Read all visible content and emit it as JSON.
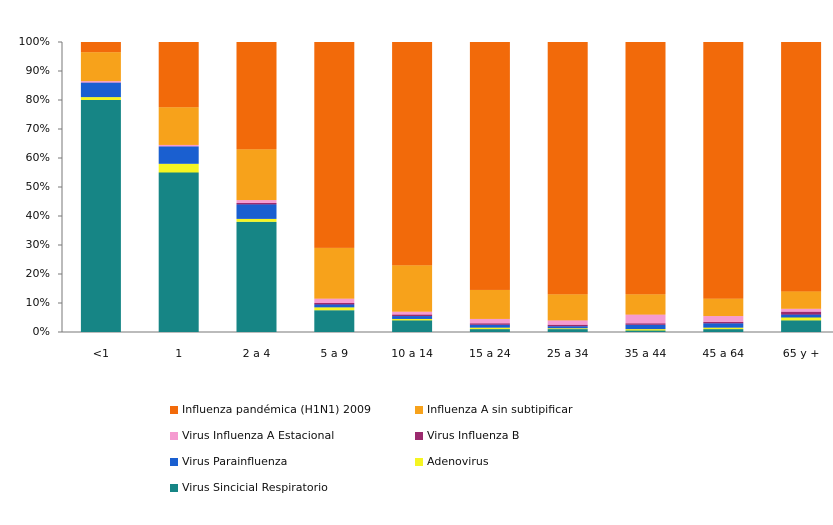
{
  "chart_data": {
    "type": "stacked_bar",
    "categories": [
      "<1",
      "1",
      "2 a 4",
      "5 a 9",
      "10 a 14",
      "15 a 24",
      "25 a 34",
      "35 a 44",
      "45 a 64",
      "65 y +"
    ],
    "series": [
      {
        "name": "Influenza pandémica (H1N1) 2009",
        "color": "#f26a0a",
        "values": [
          3.5,
          22.5,
          37,
          71,
          77,
          85.5,
          87,
          87,
          88.5,
          86
        ]
      },
      {
        "name": "Influenza A sin subtipificar",
        "color": "#f7a21b",
        "values": [
          10,
          13,
          17.5,
          17.5,
          16,
          10,
          9,
          7,
          6,
          6
        ]
      },
      {
        "name": "Virus Influenza A Estacional",
        "color": "#f59bd0",
        "values": [
          0.5,
          0.5,
          1,
          1.5,
          1,
          1.5,
          1.5,
          3,
          2,
          1
        ]
      },
      {
        "name": "Virus Influenza B",
        "color": "#9b2a6e",
        "values": [
          0,
          0,
          0.5,
          0.5,
          0.5,
          0.5,
          0.5,
          0.5,
          0.5,
          1
        ]
      },
      {
        "name": "Virus Parainfluenza",
        "color": "#1a5fd0",
        "values": [
          5,
          6,
          5,
          1,
          1,
          1,
          0.7,
          1.5,
          1.5,
          1
        ]
      },
      {
        "name": "Adenovirus",
        "color": "#f5f522",
        "values": [
          1,
          3,
          1,
          1,
          0.5,
          0.5,
          0.3,
          0.5,
          0.5,
          1
        ]
      },
      {
        "name": "Virus Sincicial Respiratorio",
        "color": "#168585",
        "values": [
          80,
          55,
          38,
          7.5,
          4,
          1,
          1,
          0.5,
          1,
          4
        ]
      }
    ],
    "ylim": [
      0,
      100
    ],
    "yticks": [
      {
        "value": 0,
        "label": "0%"
      },
      {
        "value": 10,
        "label": "10%"
      },
      {
        "value": 20,
        "label": "20%"
      },
      {
        "value": 30,
        "label": "30%"
      },
      {
        "value": 40,
        "label": "40%"
      },
      {
        "value": 50,
        "label": "50%"
      },
      {
        "value": 60,
        "label": "60%"
      },
      {
        "value": 70,
        "label": "70%"
      },
      {
        "value": 80,
        "label": "80%"
      },
      {
        "value": 90,
        "label": "90%"
      },
      {
        "value": 100,
        "label": "100%"
      }
    ],
    "grid": false
  }
}
